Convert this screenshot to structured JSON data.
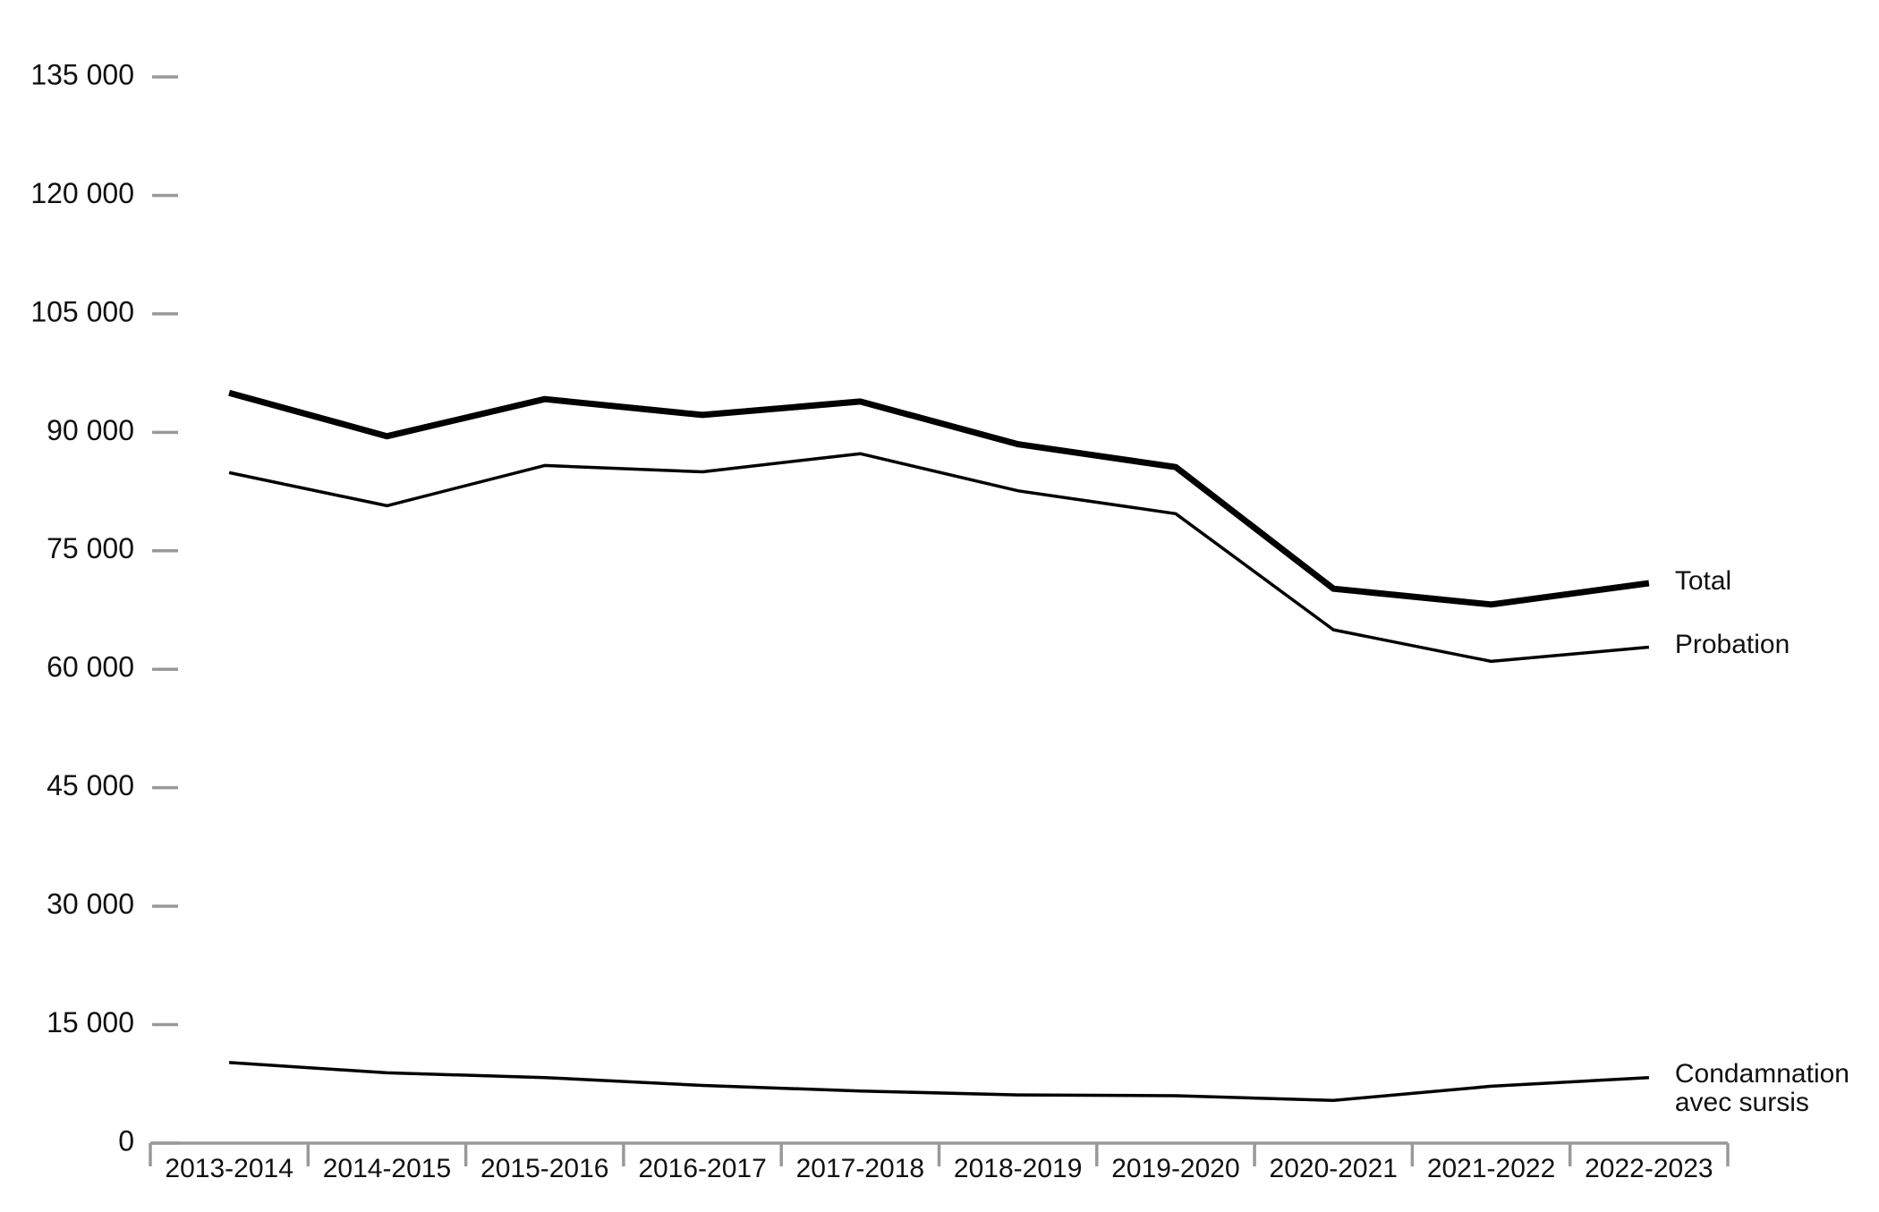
{
  "chart_data": {
    "type": "line",
    "categories": [
      "2013-2014",
      "2014-2015",
      "2015-2016",
      "2016-2017",
      "2017-2018",
      "2018-2019",
      "2019-2020",
      "2020-2021",
      "2021-2022",
      "2022-2023"
    ],
    "series": [
      {
        "name": "Total",
        "color": "#000000",
        "line_width": 7,
        "values": [
          95000,
          89500,
          94200,
          92200,
          93900,
          88500,
          85600,
          70200,
          68200,
          70900
        ]
      },
      {
        "name": "Probation",
        "color": "#000000",
        "line_width": 3.5,
        "values": [
          84900,
          80700,
          85800,
          85000,
          87300,
          82600,
          79700,
          65000,
          61000,
          62800
        ]
      },
      {
        "name": "Condamnation avec sursis",
        "color": "#000000",
        "line_width": 3.5,
        "values": [
          10200,
          8900,
          8300,
          7300,
          6600,
          6100,
          6000,
          5400,
          7200,
          8300
        ]
      }
    ],
    "ylim": [
      0,
      135000
    ],
    "yticks": [
      0,
      {
        "value": 15000,
        "label": "15 000"
      },
      {
        "value": 30000,
        "label": "30 000"
      },
      {
        "value": 45000,
        "label": "45 000"
      },
      {
        "value": 60000,
        "label": "60 000"
      },
      {
        "value": 75000,
        "label": "75 000"
      },
      {
        "value": 90000,
        "label": "90 000"
      },
      {
        "value": 105000,
        "label": "105 000"
      },
      {
        "value": 120000,
        "label": "120 000"
      },
      {
        "value": 135000,
        "label": "135 000"
      }
    ],
    "grid": false
  }
}
